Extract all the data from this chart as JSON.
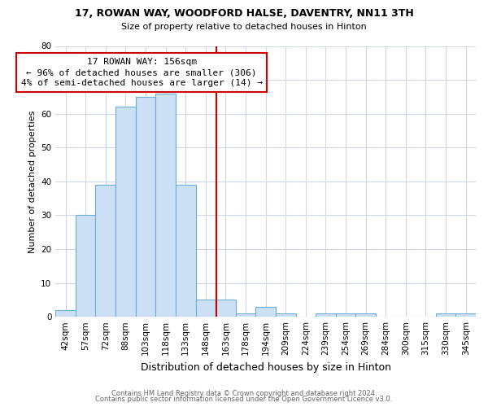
{
  "title": "17, ROWAN WAY, WOODFORD HALSE, DAVENTRY, NN11 3TH",
  "subtitle": "Size of property relative to detached houses in Hinton",
  "xlabel": "Distribution of detached houses by size in Hinton",
  "ylabel": "Number of detached properties",
  "categories": [
    "42sqm",
    "57sqm",
    "72sqm",
    "88sqm",
    "103sqm",
    "118sqm",
    "133sqm",
    "148sqm",
    "163sqm",
    "178sqm",
    "194sqm",
    "209sqm",
    "224sqm",
    "239sqm",
    "254sqm",
    "269sqm",
    "284sqm",
    "300sqm",
    "315sqm",
    "330sqm",
    "345sqm"
  ],
  "values": [
    2,
    30,
    39,
    62,
    65,
    66,
    39,
    5,
    5,
    1,
    3,
    1,
    0,
    1,
    1,
    1,
    0,
    0,
    0,
    1,
    1
  ],
  "bar_color": "#cce0f5",
  "bar_edge_color": "#6aaed6",
  "bar_width": 1.0,
  "vline_color": "#cc0000",
  "annotation_line1": "17 ROWAN WAY: 156sqm",
  "annotation_line2": "← 96% of detached houses are smaller (306)",
  "annotation_line3": "4% of semi-detached houses are larger (14) →",
  "annotation_box_edge_color": "#cc0000",
  "ylim": [
    0,
    80
  ],
  "yticks": [
    0,
    10,
    20,
    30,
    40,
    50,
    60,
    70,
    80
  ],
  "footer1": "Contains HM Land Registry data © Crown copyright and database right 2024.",
  "footer2": "Contains public sector information licensed under the Open Government Licence v3.0.",
  "bg_color": "#ffffff",
  "grid_color": "#d0d8e8",
  "title_fontsize": 9,
  "subtitle_fontsize": 8,
  "xlabel_fontsize": 9,
  "ylabel_fontsize": 8,
  "tick_fontsize": 7.5,
  "annotation_fontsize": 8,
  "footer_fontsize": 6
}
